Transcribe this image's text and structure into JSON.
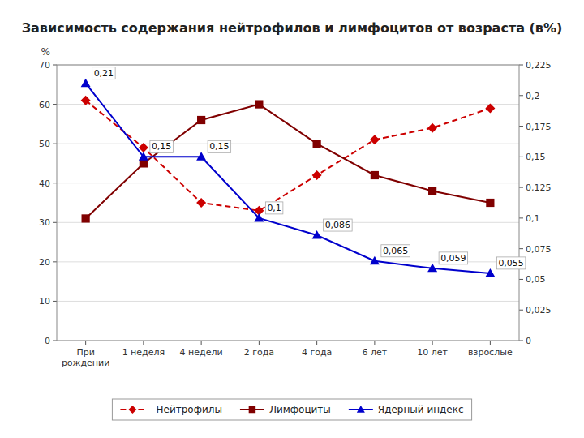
{
  "chart_data": {
    "type": "line",
    "title": "Зависимость содержания нейтрофилов и лимфоцитов от возраста (в%)",
    "categories": [
      "При\nрождении",
      "1 неделя",
      "4 недели",
      "2 года",
      "4 года",
      "6 лет",
      "10 лет",
      "взрослые"
    ],
    "ylabel": "%",
    "ylim": [
      0,
      70
    ],
    "yticks": [
      0,
      10,
      20,
      30,
      40,
      50,
      60,
      70
    ],
    "y2lim": [
      0,
      0.225
    ],
    "y2ticks": [
      0,
      {
        "value": 0.025,
        "label": "0,025"
      },
      {
        "value": 0.05,
        "label": "0,05"
      },
      {
        "value": 0.075,
        "label": "0,075"
      },
      {
        "value": 0.1,
        "label": "0,1"
      },
      {
        "value": 0.125,
        "label": "0,125"
      },
      {
        "value": 0.15,
        "label": "0,15"
      },
      {
        "value": 0.175,
        "label": "0,175"
      },
      {
        "value": 0.2,
        "label": "0,2"
      },
      {
        "value": 0.225,
        "label": "0,225"
      }
    ],
    "grid": true,
    "legend": "bottom",
    "series": [
      {
        "name": "- Нейтрофилы",
        "color": "#cc0000",
        "line_style": "dashed",
        "marker": "diamond",
        "values": [
          61,
          49,
          35,
          33,
          42,
          51,
          54,
          59
        ]
      },
      {
        "name": "Лимфоциты",
        "color": "#800000",
        "line_style": "solid",
        "marker": "square",
        "values": [
          31,
          45,
          56,
          60,
          50,
          42,
          38,
          35
        ]
      },
      {
        "name": "Ядерный индекс",
        "color": "#0000cc",
        "line_style": "solid",
        "marker": "triangle",
        "axis": "y2",
        "data_labels": true,
        "values": [
          0.21,
          0.15,
          0.15,
          0.1,
          0.086,
          0.065,
          0.059,
          0.055
        ],
        "value_labels": [
          "0,21",
          "0,15",
          "0,15",
          "0,1",
          "0,086",
          "0,065",
          "0,059",
          "0,055"
        ]
      }
    ]
  }
}
